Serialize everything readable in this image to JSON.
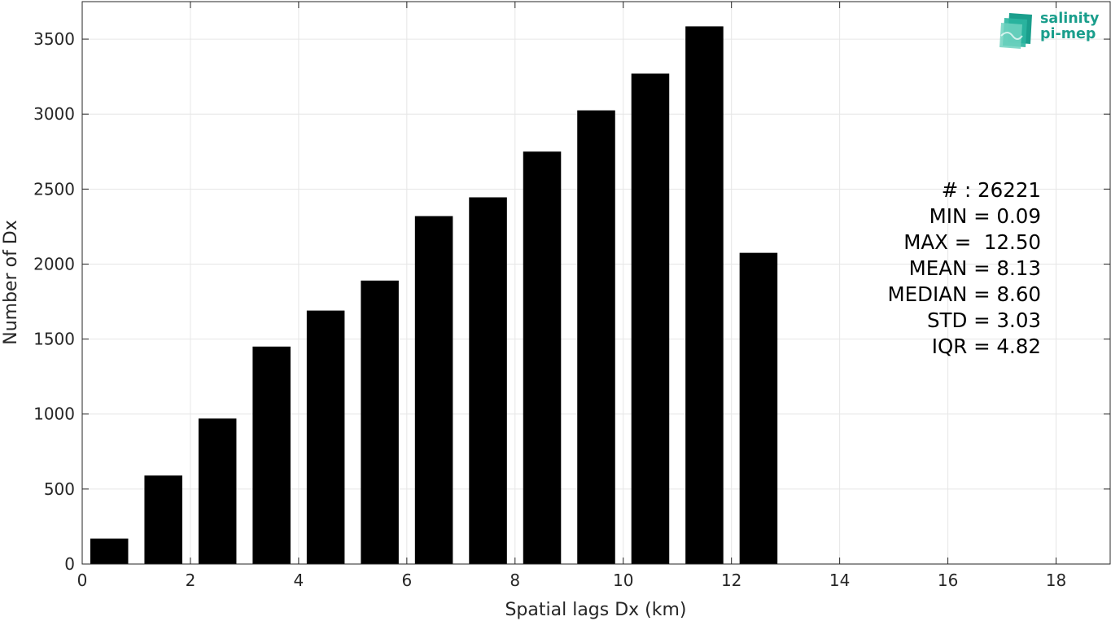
{
  "chart_data": {
    "type": "bar",
    "title": "",
    "xlabel": "Spatial lags Dx (km)",
    "ylabel": "Number of Dx",
    "xlim": [
      0,
      19
    ],
    "ylim": [
      0,
      3750
    ],
    "xticks": [
      0,
      2,
      4,
      6,
      8,
      10,
      12,
      14,
      16,
      18
    ],
    "yticks": [
      0,
      500,
      1000,
      1500,
      2000,
      2500,
      3000,
      3500
    ],
    "grid": true,
    "bar_color": "#000000",
    "bins": [
      {
        "x": 0.5,
        "value": 170
      },
      {
        "x": 1.5,
        "value": 590
      },
      {
        "x": 2.5,
        "value": 970
      },
      {
        "x": 3.5,
        "value": 1450
      },
      {
        "x": 4.5,
        "value": 1690
      },
      {
        "x": 5.5,
        "value": 1890
      },
      {
        "x": 6.5,
        "value": 2320
      },
      {
        "x": 7.5,
        "value": 2445
      },
      {
        "x": 8.5,
        "value": 2750
      },
      {
        "x": 9.5,
        "value": 3025
      },
      {
        "x": 10.5,
        "value": 3270
      },
      {
        "x": 11.5,
        "value": 3585
      },
      {
        "x": 12.5,
        "value": 2075
      }
    ]
  },
  "stats": {
    "count": "# : 26221",
    "min": "MIN = 0.09",
    "max": "MAX =  12.50",
    "mean": "MEAN = 8.13",
    "median": "MEDIAN = 8.60",
    "std": "STD = 3.03",
    "iqr": "IQR = 4.82"
  },
  "logo": {
    "line1": "salinity",
    "line2": "pi-mep",
    "color": "#1a9e8c"
  }
}
